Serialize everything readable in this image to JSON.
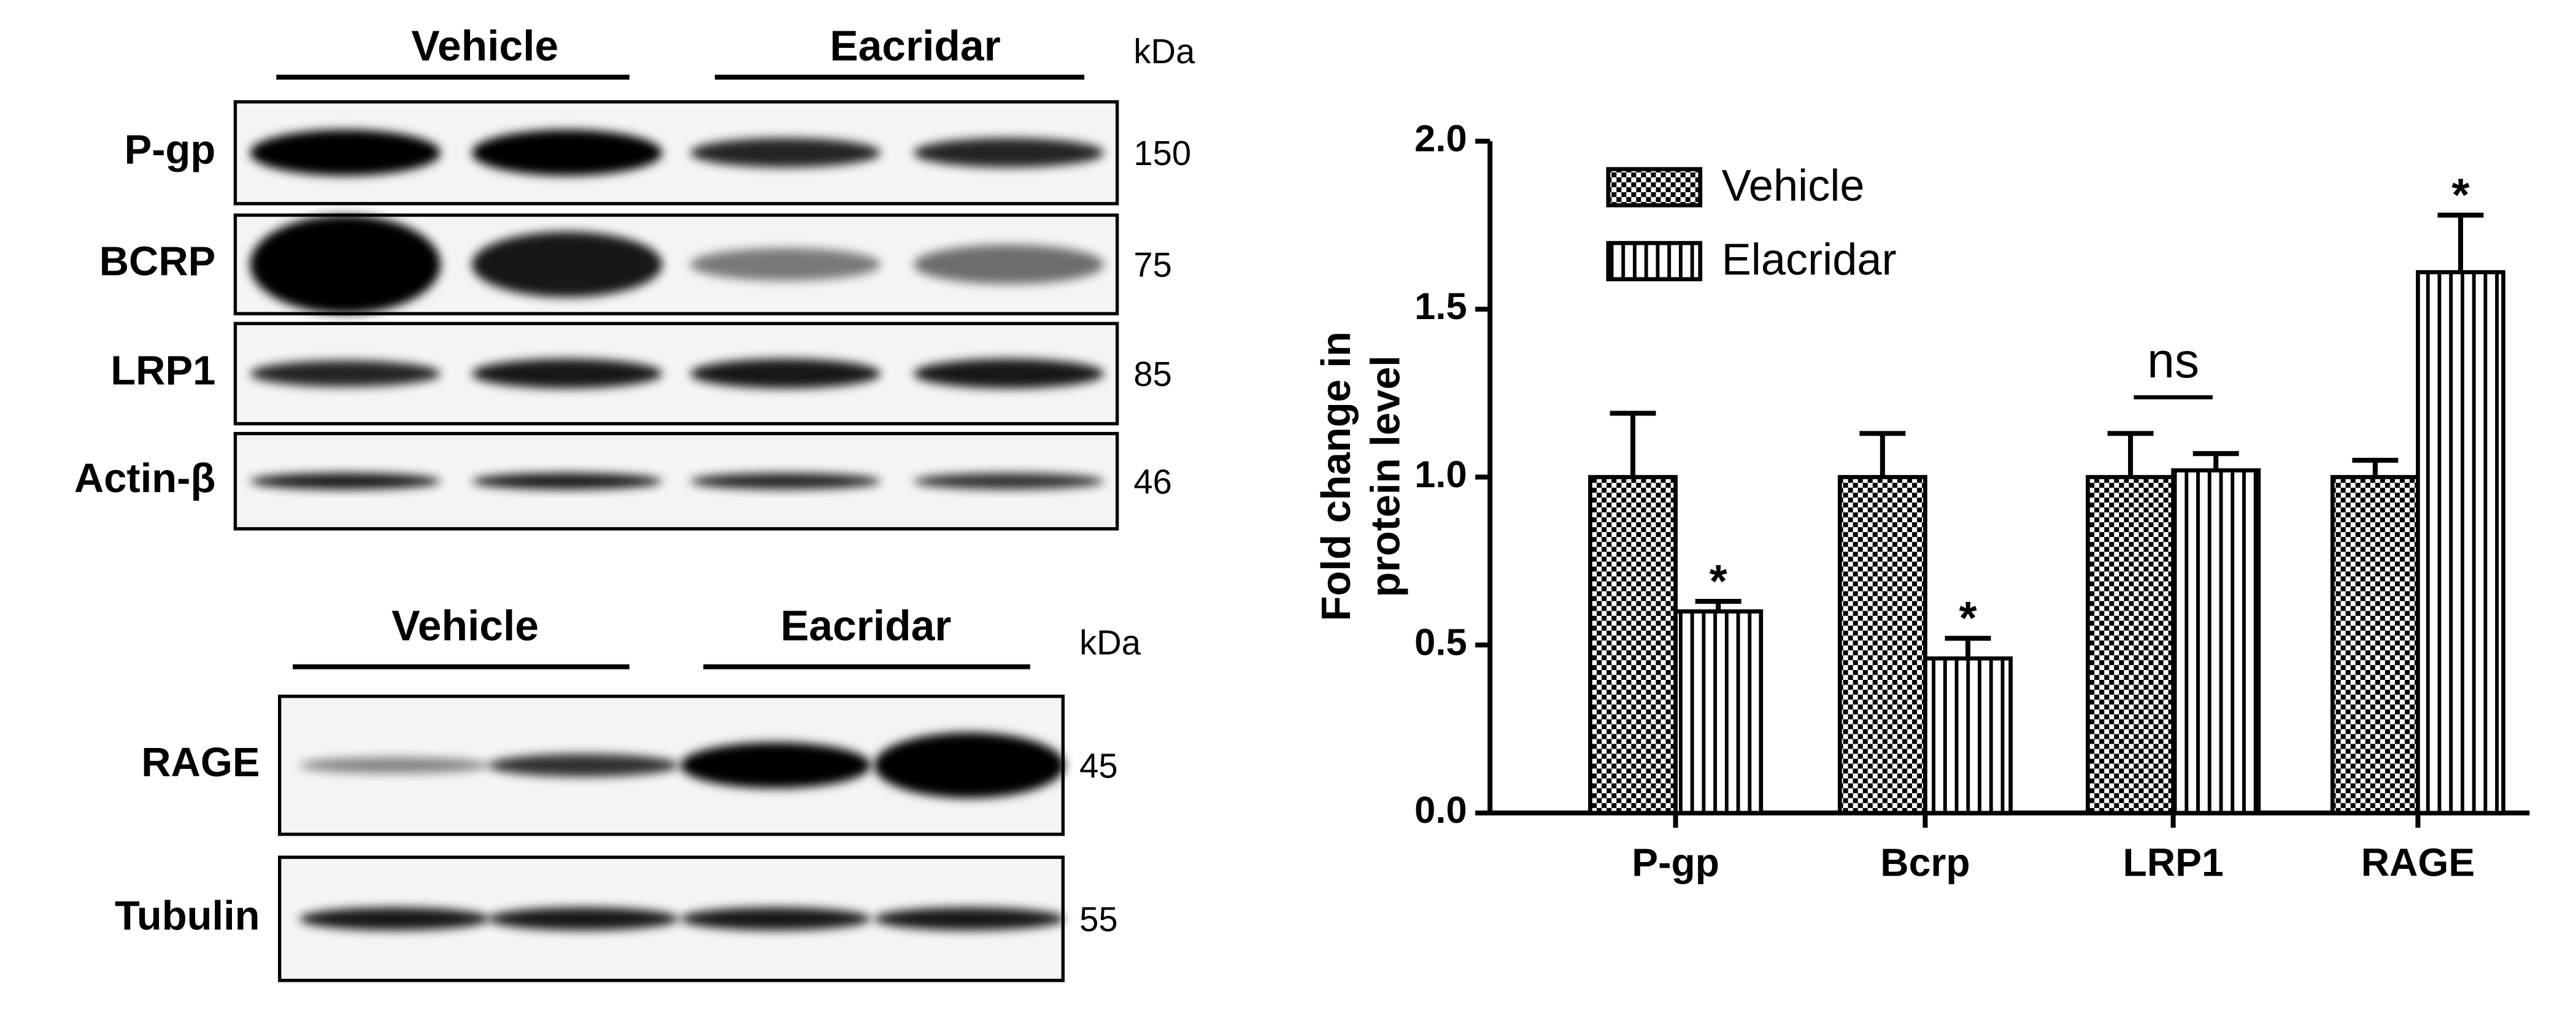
{
  "blots": {
    "panels": [
      {
        "groups": [
          "Vehicle",
          "Eacridar"
        ],
        "unit": "kDa",
        "rows": [
          {
            "label": "P-gp",
            "kda": 150
          },
          {
            "label": "BCRP",
            "kda": 75
          },
          {
            "label": "LRP1",
            "kda": 85
          },
          {
            "label": "Actin-β",
            "kda": 46
          }
        ]
      },
      {
        "groups": [
          "Vehicle",
          "Eacridar"
        ],
        "unit": "kDa",
        "rows": [
          {
            "label": "RAGE",
            "kda": 45
          },
          {
            "label": "Tubulin",
            "kda": 55
          }
        ]
      }
    ]
  },
  "chart_data": {
    "type": "bar",
    "ylabel": [
      "Fold change in",
      "protein level"
    ],
    "categories": [
      "P-gp",
      "Bcrp",
      "LRP1",
      "RAGE"
    ],
    "series": [
      {
        "name": "Vehicle",
        "color": "#000000",
        "pattern": "checker",
        "values": [
          1.0,
          1.0,
          1.0,
          1.0
        ],
        "errors": [
          0.19,
          0.13,
          0.13,
          0.05
        ]
      },
      {
        "name": "Elacridar",
        "color": "#000000",
        "pattern": "stripes",
        "values": [
          0.6,
          0.46,
          1.02,
          1.61
        ],
        "errors": [
          0.03,
          0.06,
          0.05,
          0.17
        ]
      }
    ],
    "significance": [
      "*",
      "*",
      "ns",
      "*"
    ],
    "ylim": [
      0,
      2
    ],
    "yticks": [
      {
        "value": 0,
        "label": "0.0"
      },
      {
        "value": 0.5,
        "label": "0.5"
      },
      {
        "value": 1,
        "label": "1.0"
      },
      {
        "value": 1.5,
        "label": "1.5"
      },
      {
        "value": 2,
        "label": "2.0"
      }
    ],
    "legend": "upper left"
  }
}
